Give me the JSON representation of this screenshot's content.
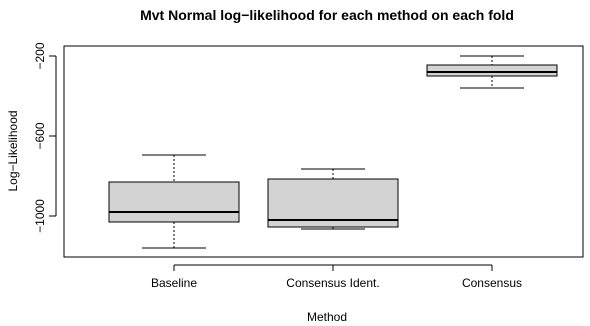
{
  "chart_data": {
    "type": "boxplot",
    "title": "Mvt Normal log−likelihood for each method on each fold",
    "xlabel": "Method",
    "ylabel": "Log−Likelihood",
    "categories": [
      "Baseline",
      "Consensus Ident.",
      "Consensus"
    ],
    "yticks": [
      -200,
      -600,
      -1000
    ],
    "ylim": [
      -1200,
      -160
    ],
    "boxes": [
      {
        "name": "Baseline",
        "whisker_low": -1160,
        "q1": -1030,
        "median": -980,
        "q3": -830,
        "whisker_high": -695
      },
      {
        "name": "Consensus Ident.",
        "whisker_low": -1065,
        "q1": -1055,
        "median": -1020,
        "q3": -815,
        "whisker_high": -765
      },
      {
        "name": "Consensus",
        "whisker_low": -360,
        "q1": -300,
        "median": -280,
        "q3": -245,
        "whisker_high": -200
      }
    ],
    "box_fill": "#d3d3d3",
    "grid": false,
    "legend": "none"
  }
}
